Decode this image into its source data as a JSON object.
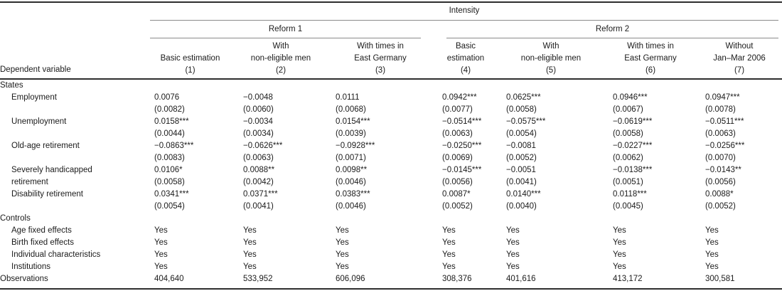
{
  "table": {
    "top_header": "Intensity",
    "group_headers": [
      {
        "label": "Reform 1"
      },
      {
        "label": "Reform 2"
      }
    ],
    "row_header": "Dependent variable",
    "columns": [
      {
        "lines": [
          "Basic estimation"
        ],
        "number": "(1)"
      },
      {
        "lines": [
          "With",
          "non-eligible men"
        ],
        "number": "(2)"
      },
      {
        "lines": [
          "With times in",
          "East Germany"
        ],
        "number": "(3)"
      },
      {
        "lines": [
          "Basic",
          "estimation"
        ],
        "number": "(4)"
      },
      {
        "lines": [
          "With",
          "non-eligible men"
        ],
        "number": "(5)"
      },
      {
        "lines": [
          "With times in",
          "East Germany"
        ],
        "number": "(6)"
      },
      {
        "lines": [
          "Without",
          "Jan–Mar 2006"
        ],
        "number": "(7)"
      }
    ],
    "sections": [
      {
        "title": "States",
        "rows": [
          {
            "label_lines": [
              "Employment"
            ],
            "coefs": [
              "0.0076",
              "−0.0048",
              "0.0111",
              "0.0942***",
              "0.0625***",
              "0.0946***",
              "0.0947***"
            ],
            "ses": [
              "(0.0082)",
              "(0.0060)",
              "(0.0068)",
              "(0.0077)",
              "(0.0058)",
              "(0.0067)",
              "(0.0078)"
            ]
          },
          {
            "label_lines": [
              "Unemployment"
            ],
            "coefs": [
              "0.0158***",
              "−0.0034",
              "0.0154***",
              "−0.0514***",
              "−0.0575***",
              "−0.0619***",
              "−0.0511***"
            ],
            "ses": [
              "(0.0044)",
              "(0.0034)",
              "(0.0039)",
              "(0.0063)",
              "(0.0054)",
              "(0.0058)",
              "(0.0063)"
            ]
          },
          {
            "label_lines": [
              "Old-age retirement"
            ],
            "coefs": [
              "−0.0863***",
              "−0.0626***",
              "−0.0928***",
              "−0.0250***",
              "−0.0081",
              "−0.0227***",
              "−0.0256***"
            ],
            "ses": [
              "(0.0083)",
              "(0.0063)",
              "(0.0071)",
              "(0.0069)",
              "(0.0052)",
              "(0.0062)",
              "(0.0070)"
            ]
          },
          {
            "label_lines": [
              "Severely handicapped",
              "retirement"
            ],
            "coefs": [
              "0.0106*",
              "0.0088**",
              "0.0098**",
              "−0.0145***",
              "−0.0051",
              "−0.0138***",
              "−0.0143**"
            ],
            "ses": [
              "(0.0058)",
              "(0.0042)",
              "(0.0046)",
              "(0.0056)",
              "(0.0041)",
              "(0.0051)",
              "(0.0056)"
            ]
          },
          {
            "label_lines": [
              "Disability retirement"
            ],
            "coefs": [
              "0.0341***",
              "0.0371***",
              "0.0383***",
              "0.0087*",
              "0.0140***",
              "0.0118***",
              "0.0088*"
            ],
            "ses": [
              "(0.0054)",
              "(0.0041)",
              "(0.0046)",
              "(0.0052)",
              "(0.0040)",
              "(0.0045)",
              "(0.0052)"
            ]
          }
        ]
      },
      {
        "title": "Controls",
        "rows": [
          {
            "label_lines": [
              "Age fixed effects"
            ],
            "values": [
              "Yes",
              "Yes",
              "Yes",
              "Yes",
              "Yes",
              "Yes",
              "Yes"
            ]
          },
          {
            "label_lines": [
              "Birth fixed effects"
            ],
            "values": [
              "Yes",
              "Yes",
              "Yes",
              "Yes",
              "Yes",
              "Yes",
              "Yes"
            ]
          },
          {
            "label_lines": [
              "Individual characteristics"
            ],
            "values": [
              "Yes",
              "Yes",
              "Yes",
              "Yes",
              "Yes",
              "Yes",
              "Yes"
            ]
          },
          {
            "label_lines": [
              "Institutions"
            ],
            "values": [
              "Yes",
              "Yes",
              "Yes",
              "Yes",
              "Yes",
              "Yes",
              "Yes"
            ]
          }
        ]
      }
    ],
    "footer_row": {
      "label": "Observations",
      "values": [
        "404,640",
        "533,952",
        "606,096",
        "308,376",
        "401,616",
        "413,172",
        "300,581"
      ]
    }
  }
}
